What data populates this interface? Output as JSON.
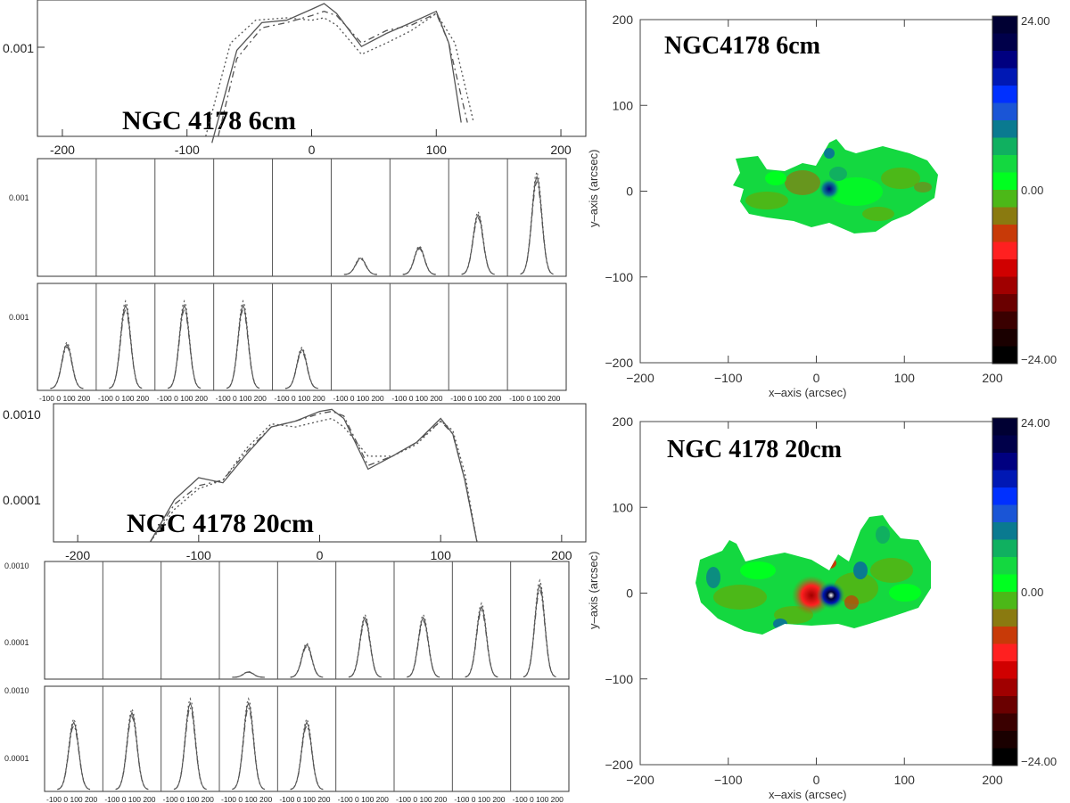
{
  "chart_data": [
    {
      "type": "line",
      "title": "NGC 4178 6cm",
      "xlim": [
        -220,
        220
      ],
      "xticks": [
        "-200",
        "-100",
        "0",
        "100",
        "200"
      ],
      "yticks": [
        "0.001"
      ],
      "series": [
        {
          "style": "solid",
          "x": [
            -80,
            -60,
            -40,
            -20,
            0,
            10,
            20,
            40,
            60,
            80,
            100,
            110,
            120
          ],
          "y": [
            0.00018,
            0.0008,
            0.00125,
            0.0013,
            0.00155,
            0.0017,
            0.00145,
            0.00085,
            0.00105,
            0.00125,
            0.0015,
            0.0009,
            0.00025
          ]
        },
        {
          "style": "dashed",
          "x": [
            -75,
            -60,
            -40,
            -20,
            0,
            10,
            20,
            40,
            60,
            80,
            100,
            110,
            125
          ],
          "y": [
            0.0002,
            0.0007,
            0.00115,
            0.00125,
            0.0014,
            0.0015,
            0.0014,
            0.0009,
            0.0011,
            0.0012,
            0.00145,
            0.0009,
            0.00025
          ]
        },
        {
          "style": "dotted",
          "x": [
            -85,
            -65,
            -45,
            -20,
            0,
            10,
            20,
            40,
            60,
            80,
            100,
            115,
            130
          ],
          "y": [
            0.0002,
            0.0009,
            0.0013,
            0.00135,
            0.0013,
            0.00135,
            0.0012,
            0.00075,
            0.0009,
            0.0011,
            0.00145,
            0.0009,
            0.00025
          ]
        }
      ]
    },
    {
      "type": "line",
      "title": "",
      "panels": 18,
      "xticks": [
        "-100",
        "0",
        "100",
        "200"
      ],
      "yticks_6cm": [
        "0.001"
      ],
      "peaks_row1": [
        0,
        0,
        0,
        0,
        0,
        0.15,
        0.25,
        0.55,
        0.9
      ],
      "peaks_row2": [
        0.45,
        0.85,
        0.85,
        0.85,
        0.4,
        0,
        0,
        0,
        0
      ]
    },
    {
      "type": "line",
      "title": "NGC 4178 20cm",
      "xlim": [
        -220,
        220
      ],
      "xticks": [
        "-200",
        "-100",
        "0",
        "100",
        "200"
      ],
      "yticks": [
        "0.0010",
        "0.0001"
      ],
      "series": [
        {
          "style": "solid",
          "x": [
            -140,
            -120,
            -100,
            -80,
            -60,
            -40,
            -20,
            0,
            10,
            20,
            40,
            60,
            80,
            100,
            110,
            120,
            130
          ],
          "y": [
            3e-05,
            9e-05,
            0.00016,
            0.00014,
            0.0003,
            0.0006,
            0.0007,
            0.0009,
            0.00095,
            0.00075,
            0.0002,
            0.00028,
            0.0004,
            0.00075,
            0.0005,
            0.00015,
            3e-05
          ]
        },
        {
          "style": "dashed",
          "x": [
            -140,
            -120,
            -100,
            -80,
            -60,
            -40,
            -20,
            0,
            10,
            20,
            40,
            60,
            80,
            100,
            110,
            120,
            130
          ],
          "y": [
            3e-05,
            8e-05,
            0.00013,
            0.00015,
            0.00032,
            0.0006,
            0.0007,
            0.00085,
            0.0009,
            0.0008,
            0.00022,
            0.00028,
            0.0004,
            0.0007,
            0.0005,
            0.00015,
            3e-05
          ]
        },
        {
          "style": "dotted",
          "x": [
            -140,
            -120,
            -100,
            -80,
            -60,
            -40,
            -20,
            0,
            10,
            20,
            40,
            60,
            80,
            100,
            110,
            120,
            130
          ],
          "y": [
            3e-05,
            7e-05,
            0.00012,
            0.00015,
            0.00035,
            0.00065,
            0.0006,
            0.0007,
            0.00075,
            0.0006,
            0.00028,
            0.00028,
            0.00038,
            0.0007,
            0.00055,
            0.00018,
            3e-05
          ]
        }
      ]
    },
    {
      "type": "line",
      "title": "",
      "panels": 18,
      "xticks": [
        "-100",
        "0",
        "100",
        "200"
      ],
      "yticks_20cm": [
        "0.0010",
        "0.0001"
      ],
      "peaks_row1": [
        0,
        0,
        0,
        0.05,
        0.3,
        0.55,
        0.55,
        0.65,
        0.85
      ],
      "peaks_row2": [
        0.7,
        0.8,
        0.9,
        0.9,
        0.7,
        0,
        0,
        0,
        0
      ]
    },
    {
      "type": "heatmap",
      "title": "NGC4178 6cm",
      "xlabel": "x–axis (arcsec)",
      "ylabel": "y–axis (arcsec)",
      "xlim": [
        -200,
        200
      ],
      "ylim": [
        -200,
        200
      ],
      "xticks": [
        "−200",
        "−100",
        "0",
        "100",
        "200"
      ],
      "yticks": [
        "200",
        "100",
        "0",
        "−100",
        "−200"
      ],
      "colorbar_labels": [
        "24.00",
        "0.00",
        "−24.00"
      ],
      "colorbar": [
        "#000033",
        "#00004a",
        "#000080",
        "#0018b4",
        "#0030ff",
        "#1a55d6",
        "#0a7a90",
        "#10b060",
        "#14d840",
        "#00ff20",
        "#4cb818",
        "#8a7a10",
        "#c83a08",
        "#ff2020",
        "#d00000",
        "#a00000",
        "#6a0000",
        "#3a0000",
        "#1a0000",
        "#000000"
      ]
    },
    {
      "type": "heatmap",
      "title": "NGC 4178 20cm",
      "xlabel": "x–axis (arcsec)",
      "ylabel": "y–axis (arcsec)",
      "xlim": [
        -200,
        200
      ],
      "ylim": [
        -200,
        200
      ],
      "xticks": [
        "−200",
        "−100",
        "0",
        "100",
        "200"
      ],
      "yticks": [
        "200",
        "100",
        "0",
        "−100",
        "−200"
      ],
      "colorbar_labels": [
        "24.00",
        "0.00",
        "−24.00"
      ],
      "colorbar": [
        "#000033",
        "#00004a",
        "#000080",
        "#0018b4",
        "#0030ff",
        "#1a55d6",
        "#0a7a90",
        "#10b060",
        "#14d840",
        "#00ff20",
        "#4cb818",
        "#8a7a10",
        "#c83a08",
        "#ff2020",
        "#d00000",
        "#a00000",
        "#6a0000",
        "#3a0000",
        "#1a0000",
        "#000000"
      ]
    }
  ]
}
